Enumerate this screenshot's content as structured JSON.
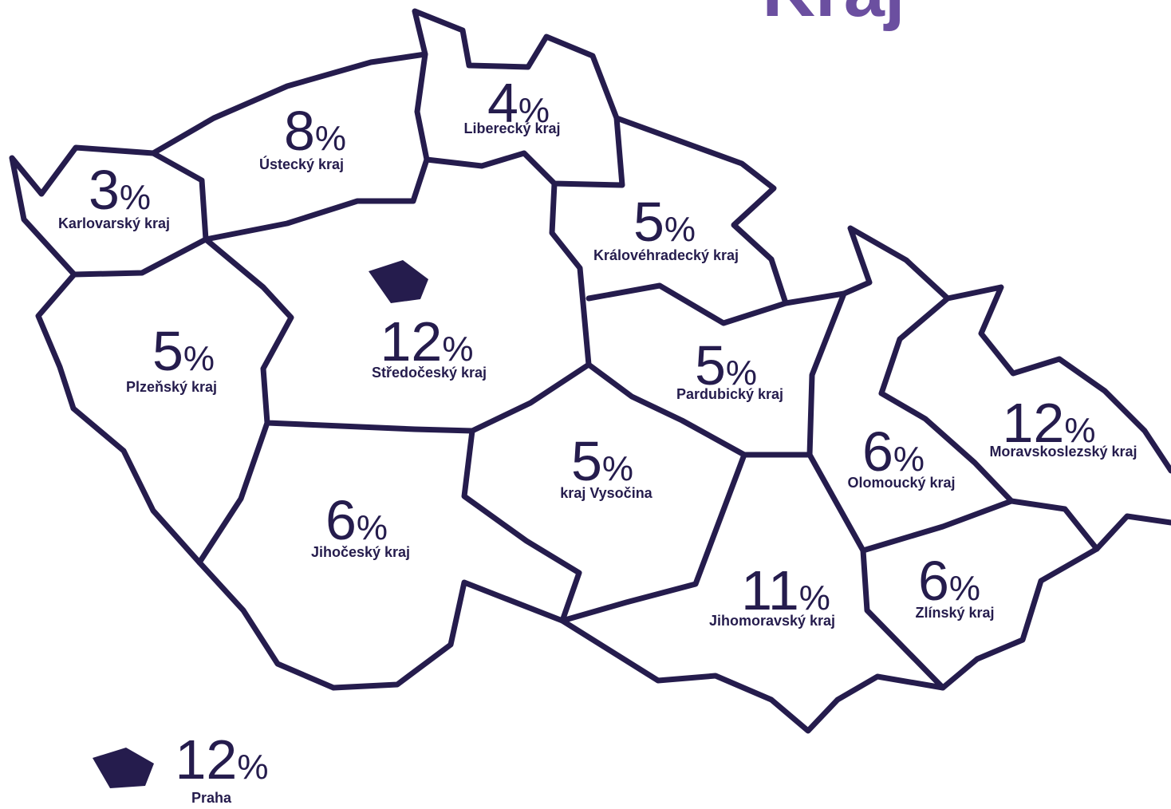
{
  "title": "Kraj",
  "unit": "%",
  "regions": [
    {
      "name": "Karlovarský kraj",
      "value": 3
    },
    {
      "name": "Ústecký kraj",
      "value": 8
    },
    {
      "name": "Liberecký kraj",
      "value": 4
    },
    {
      "name": "Královéhradecký kraj",
      "value": 5
    },
    {
      "name": "Středočeský kraj",
      "value": 12
    },
    {
      "name": "Plzeňský kraj",
      "value": 5
    },
    {
      "name": "Pardubický kraj",
      "value": 5
    },
    {
      "name": "kraj Vysočina",
      "value": 5
    },
    {
      "name": "Jihočeský kraj",
      "value": 6
    },
    {
      "name": "Olomoucký kraj",
      "value": 6
    },
    {
      "name": "Moravskoslezský kraj",
      "value": 12
    },
    {
      "name": "Jihomoravský kraj",
      "value": 11
    },
    {
      "name": "Zlínský kraj",
      "value": 6
    },
    {
      "name": "Praha",
      "value": 12
    }
  ]
}
